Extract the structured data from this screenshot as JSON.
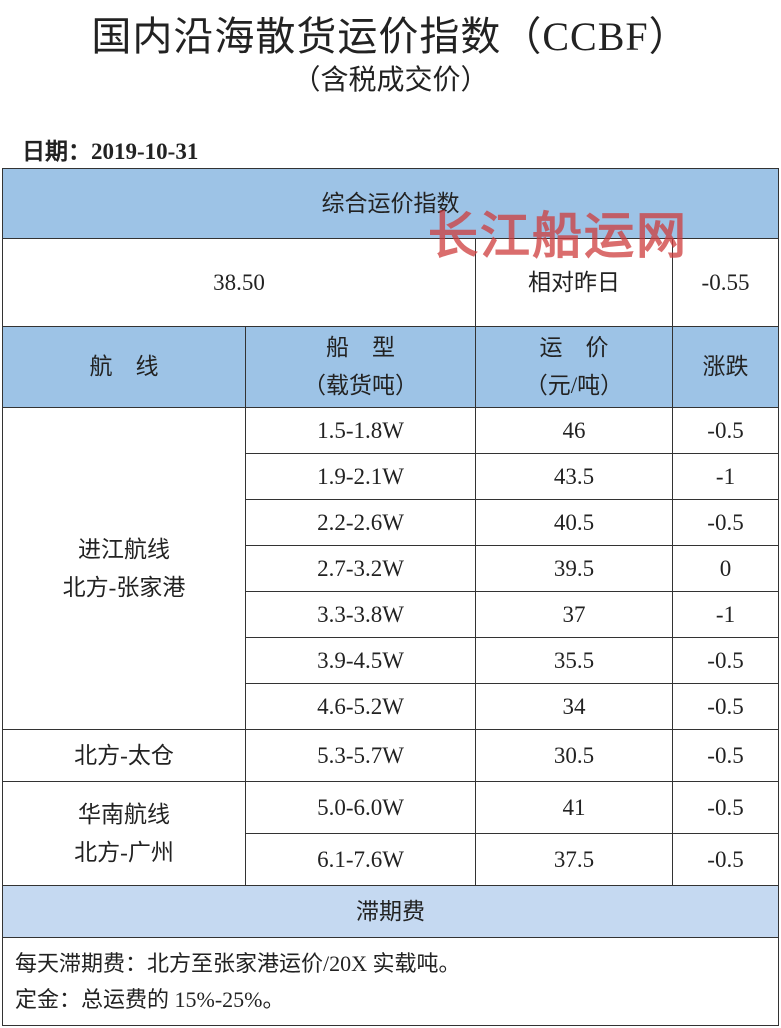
{
  "header": {
    "title": "国内沿海散货运价指数（CCBF）",
    "subtitle": "（含税成交价）",
    "date": "日期：2019-10-31"
  },
  "watermark": "长江船运网",
  "index": {
    "label": "综合运价指数",
    "value": "38.50",
    "compare_label": "相对昨日",
    "change": "-0.55"
  },
  "table": {
    "columns": [
      [
        "航　线"
      ],
      [
        "船　型",
        "（载货吨）"
      ],
      [
        "运　价",
        "（元/吨）"
      ],
      [
        "涨跌"
      ]
    ],
    "groups": [
      {
        "route": [
          "进江航线",
          "北方-张家港"
        ],
        "rows": [
          [
            "1.5-1.8W",
            "46",
            "-0.5"
          ],
          [
            "1.9-2.1W",
            "43.5",
            "-1"
          ],
          [
            "2.2-2.6W",
            "40.5",
            "-0.5"
          ],
          [
            "2.7-3.2W",
            "39.5",
            "0"
          ],
          [
            "3.3-3.8W",
            "37",
            "-1"
          ],
          [
            "3.9-4.5W",
            "35.5",
            "-0.5"
          ],
          [
            "4.6-5.2W",
            "34",
            "-0.5"
          ]
        ]
      },
      {
        "route": [
          "北方-太仓"
        ],
        "rows": [
          [
            "5.3-5.7W",
            "30.5",
            "-0.5"
          ]
        ]
      },
      {
        "route": [
          "华南航线",
          "北方-广州"
        ],
        "rows": [
          [
            "5.0-6.0W",
            "41",
            "-0.5"
          ],
          [
            "6.1-7.6W",
            "37.5",
            "-0.5"
          ]
        ]
      }
    ]
  },
  "demurrage": {
    "title": "滞期费",
    "lines": [
      "每天滞期费：北方至张家港运价/20X 实载吨。",
      "定金：总运费的 15%-25%。"
    ]
  }
}
